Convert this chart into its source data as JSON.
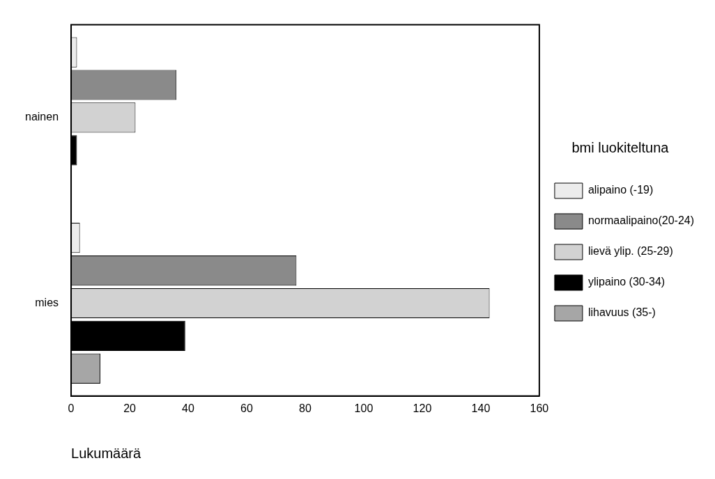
{
  "chart_data": {
    "type": "bar",
    "orientation": "horizontal",
    "categories": [
      "nainen",
      "mies"
    ],
    "xlabel": "Lukumäärä",
    "legend_title": "bmi luokiteltuna",
    "legend": "right",
    "grid": false,
    "xlim": [
      0,
      160
    ],
    "xticks": [
      0,
      20,
      40,
      60,
      80,
      100,
      120,
      140,
      160
    ],
    "series": [
      {
        "name": "alipaino (-19)",
        "color": "#ececec",
        "values": [
          2,
          3
        ]
      },
      {
        "name": "normaalipaino(20-24)",
        "color": "#8a8a8a",
        "values": [
          36,
          77
        ]
      },
      {
        "name": "lievä ylip. (25-29)",
        "color": "#d2d2d2",
        "values": [
          22,
          143
        ]
      },
      {
        "name": "ylipaino (30-34)",
        "color": "#000000",
        "values": [
          2,
          39
        ]
      },
      {
        "name": "lihavuus (35-)",
        "color": "#a6a6a6",
        "values": [
          null,
          10
        ]
      }
    ]
  }
}
